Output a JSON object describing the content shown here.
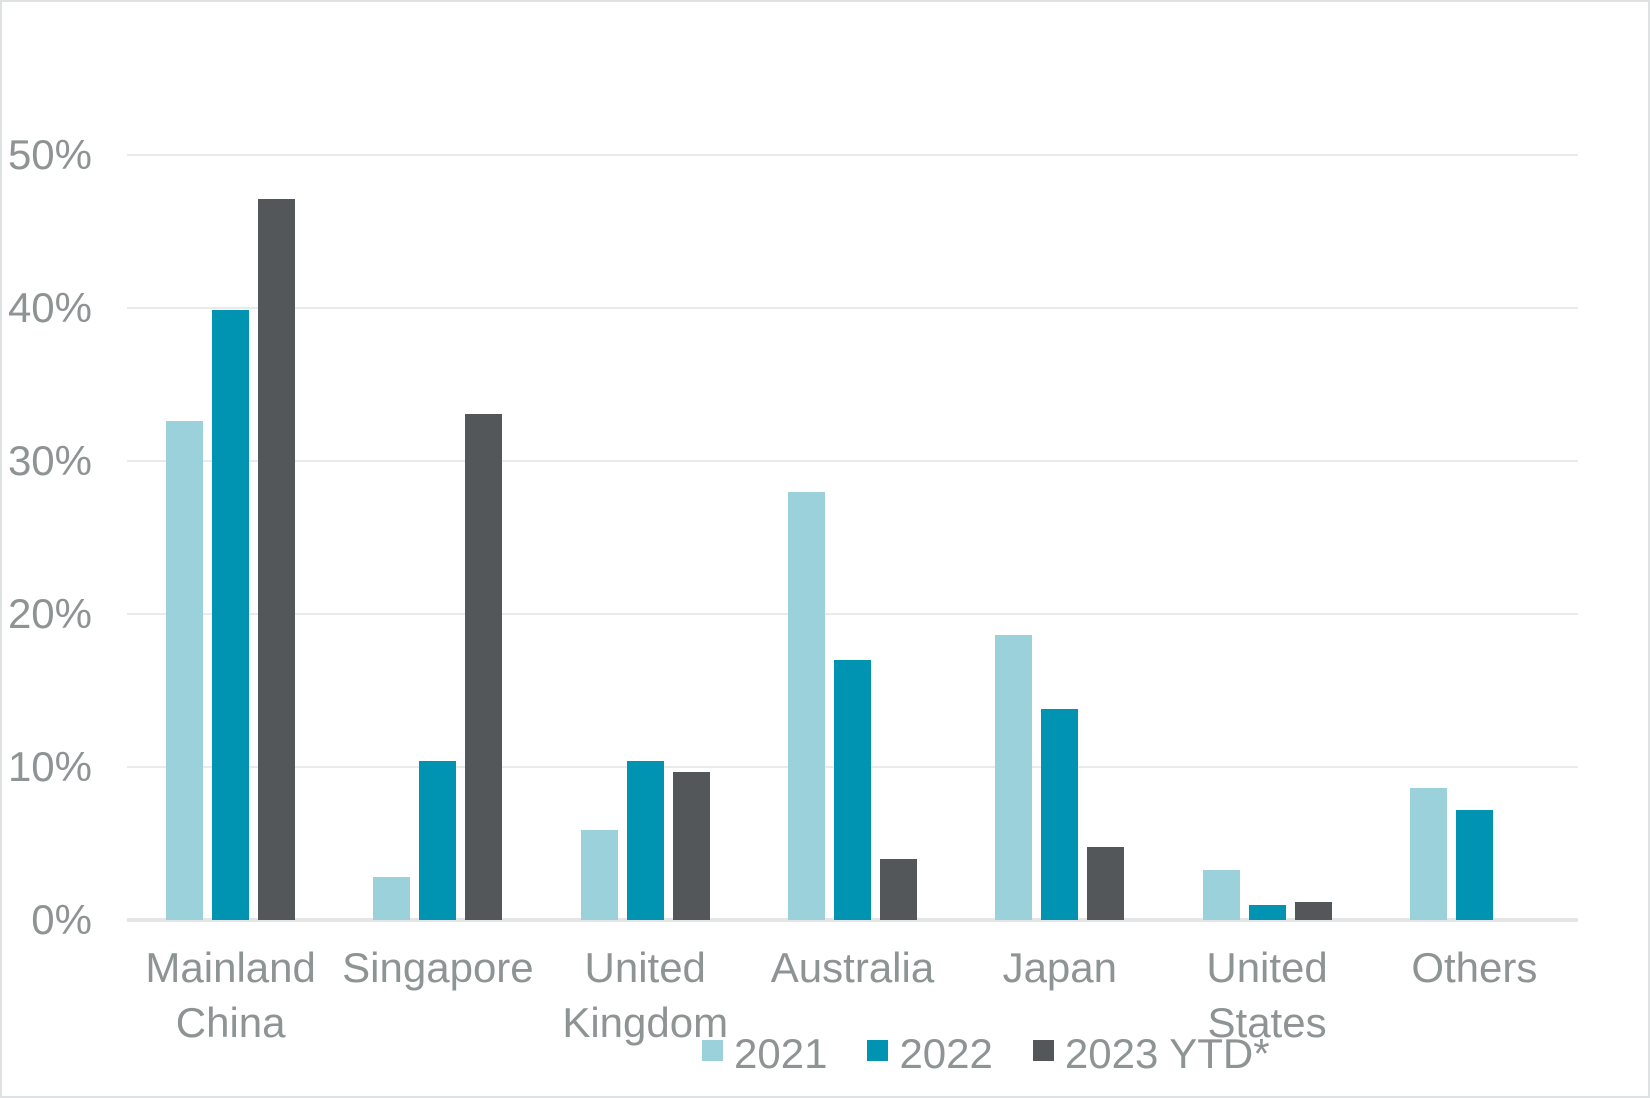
{
  "chart_data": {
    "type": "bar",
    "title": "",
    "xlabel": "",
    "ylabel": "",
    "categories": [
      "Mainland\nChina",
      "Singapore",
      "United\nKingdom",
      "Australia",
      "Japan",
      "United\nStates",
      "Others"
    ],
    "series": [
      {
        "name": "2021",
        "color": "#9ad1da",
        "values": [
          32.6,
          2.8,
          5.9,
          28.0,
          18.6,
          3.3,
          8.6
        ]
      },
      {
        "name": "2022",
        "color": "#0093b2",
        "values": [
          39.9,
          10.4,
          10.4,
          17.0,
          13.8,
          1.0,
          7.2
        ]
      },
      {
        "name": "2023 YTD*",
        "color": "#54575a",
        "values": [
          47.1,
          33.1,
          9.7,
          4.0,
          4.8,
          1.2,
          0
        ]
      }
    ],
    "y_ticks": [
      {
        "value": 0,
        "label": "0%"
      },
      {
        "value": 10,
        "label": "10%"
      },
      {
        "value": 20,
        "label": "20%"
      },
      {
        "value": 30,
        "label": "30%"
      },
      {
        "value": 40,
        "label": "40%"
      },
      {
        "value": 50,
        "label": "50%"
      }
    ],
    "ylim": [
      0,
      50
    ],
    "grid": true,
    "legend_position": "bottom"
  },
  "colors": {
    "series_2021": "#9ad1da",
    "series_2022": "#0093b2",
    "series_2023_ytd": "#54575a",
    "gridline": "#e9eaeb",
    "axis_line": "#e3e5e6",
    "text": "#8e9394",
    "background": "#ffffff",
    "canvas_border": "#dfe2e3"
  }
}
